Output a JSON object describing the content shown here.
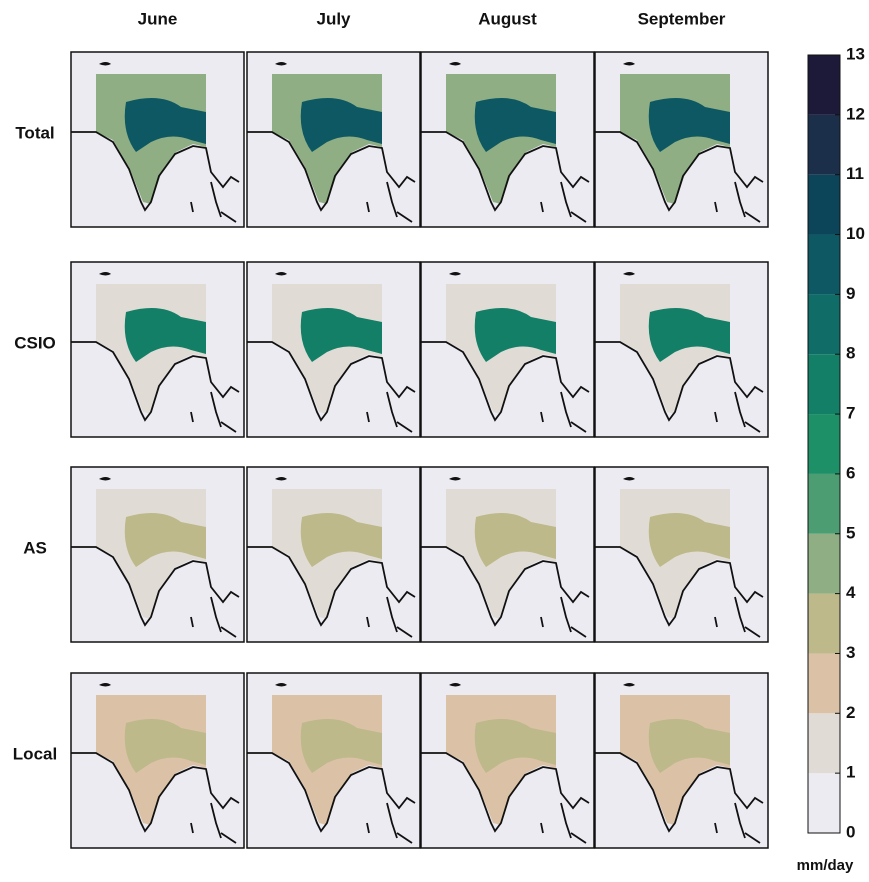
{
  "columns": [
    "June",
    "July",
    "August",
    "September"
  ],
  "rows": [
    "Total",
    "CSIO",
    "AS",
    "Local"
  ],
  "colorbar": {
    "ticks": [
      0,
      1,
      2,
      3,
      4,
      5,
      6,
      7,
      8,
      9,
      10,
      11,
      12,
      13
    ],
    "colors": [
      "#ecebf2",
      "#e0dcd5",
      "#dbc2a6",
      "#bdb98a",
      "#8fae84",
      "#4c9e72",
      "#1e9068",
      "#137f67",
      "#0f6c66",
      "#0d5862",
      "#0c455a",
      "#1b2f4a",
      "#1c1a38"
    ],
    "label": "mm/day"
  }
}
